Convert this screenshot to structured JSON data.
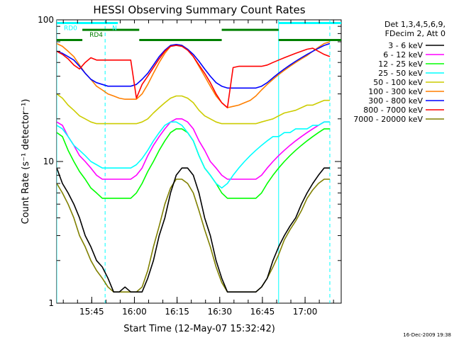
{
  "chart_data": {
    "type": "line",
    "title": "HESSI Observing Summary Count Rates",
    "xlabel": "Start Time (12-May-07 15:32:42)",
    "ylabel": "Count Rate (s⁻¹ detector⁻¹)",
    "yscale": "log",
    "ylim": [
      1,
      100
    ],
    "y_ticks": [
      {
        "value": 1,
        "label": "1"
      },
      {
        "value": 10,
        "label": "10"
      },
      {
        "value": 100,
        "label": "100"
      }
    ],
    "x_unit": "minutes since 15:32:42",
    "xlim": [
      0,
      100
    ],
    "x_ticks": [
      {
        "value": 12.3,
        "label": "15:45"
      },
      {
        "value": 27.3,
        "label": "16:00"
      },
      {
        "value": 42.3,
        "label": "16:15"
      },
      {
        "value": 57.3,
        "label": "16:30"
      },
      {
        "value": 72.3,
        "label": "16:45"
      },
      {
        "value": 87.3,
        "label": "17:00"
      }
    ],
    "legend_header": [
      "Det 1,3,4,5,6,9,",
      "FDecim 2, Att 0"
    ],
    "legend_position": "right",
    "series": [
      {
        "name": "3 - 6 keV",
        "color": "#000000",
        "x": [
          0,
          2,
          4,
          6,
          8,
          10,
          12,
          14,
          16,
          18,
          20,
          22,
          24,
          26,
          28,
          30,
          32,
          34,
          36,
          38,
          40,
          42,
          44,
          46,
          48,
          50,
          52,
          54,
          56,
          58,
          60,
          62,
          64,
          66,
          68,
          70,
          72,
          74,
          76,
          78,
          80,
          82,
          84,
          86,
          88,
          90,
          92,
          94,
          96
        ],
        "y": [
          9,
          7,
          6,
          5,
          4,
          3,
          2.5,
          2,
          1.8,
          1.5,
          1.2,
          1.2,
          1.3,
          1.2,
          1.2,
          1.2,
          1.5,
          2,
          3,
          4,
          6,
          8,
          9,
          9,
          8,
          6,
          4,
          3,
          2,
          1.5,
          1.2,
          1.2,
          1.2,
          1.2,
          1.2,
          1.2,
          1.3,
          1.5,
          2,
          2.5,
          3,
          3.5,
          4,
          5,
          6,
          7,
          8,
          9,
          9
        ]
      },
      {
        "name": "6 - 12 keV",
        "color": "#ff00ff",
        "x": [
          0,
          2,
          4,
          6,
          8,
          10,
          12,
          14,
          16,
          18,
          20,
          22,
          24,
          26,
          28,
          30,
          32,
          34,
          36,
          38,
          40,
          42,
          44,
          46,
          48,
          50,
          52,
          54,
          56,
          58,
          60,
          62,
          64,
          66,
          68,
          70,
          72,
          74,
          76,
          78,
          80,
          82,
          84,
          86,
          88,
          90,
          92,
          94,
          96
        ],
        "y": [
          19,
          18,
          15,
          13,
          11,
          10,
          9,
          8,
          7.5,
          7.5,
          7.5,
          7.5,
          7.5,
          7.5,
          8,
          9,
          11,
          13,
          15,
          17,
          19,
          20,
          20,
          19,
          17,
          14,
          12,
          10,
          9,
          8,
          7.5,
          7.5,
          7.5,
          7.5,
          7.5,
          7.5,
          8,
          9,
          10,
          11,
          12,
          13,
          14,
          15,
          16,
          17,
          18,
          19,
          19
        ]
      },
      {
        "name": "12 - 25 keV",
        "color": "#00ff00",
        "x": [
          0,
          2,
          4,
          6,
          8,
          10,
          12,
          14,
          16,
          18,
          20,
          22,
          24,
          26,
          28,
          30,
          32,
          34,
          36,
          38,
          40,
          42,
          44,
          46,
          48,
          50,
          52,
          54,
          56,
          58,
          60,
          62,
          64,
          66,
          68,
          70,
          72,
          74,
          76,
          78,
          80,
          82,
          84,
          86,
          88,
          90,
          92,
          94,
          96
        ],
        "y": [
          16,
          15,
          12,
          10,
          8.5,
          7.5,
          6.5,
          6,
          5.5,
          5.5,
          5.5,
          5.5,
          5.5,
          5.5,
          6,
          7,
          8.5,
          10,
          12,
          14,
          16,
          17,
          17,
          16,
          14,
          11,
          9,
          8,
          7,
          6,
          5.5,
          5.5,
          5.5,
          5.5,
          5.5,
          5.5,
          6,
          7,
          8,
          9,
          10,
          11,
          12,
          13,
          14,
          15,
          16,
          17,
          17
        ]
      },
      {
        "name": "25 - 50 keV",
        "color": "#00ffff",
        "x": [
          0,
          2,
          4,
          6,
          8,
          10,
          12,
          14,
          16,
          18,
          20,
          22,
          24,
          26,
          28,
          30,
          32,
          34,
          36,
          38,
          40,
          42,
          44,
          46,
          48,
          50,
          52,
          54,
          56,
          58,
          60,
          62,
          64,
          66,
          68,
          70,
          72,
          74,
          76,
          78,
          80,
          82,
          84,
          86,
          88,
          90,
          92,
          94,
          96
        ],
        "y": [
          18,
          17,
          15,
          13,
          12,
          11,
          10,
          9.5,
          9,
          9,
          9,
          9,
          9,
          9,
          9.5,
          10.5,
          12,
          14,
          16,
          18,
          19,
          19,
          18,
          16,
          14,
          11,
          9,
          8,
          7,
          6.5,
          7,
          8,
          9,
          10,
          11,
          12,
          13,
          14,
          15,
          15,
          16,
          16,
          17,
          17,
          17,
          18,
          18,
          19,
          19
        ]
      },
      {
        "name": "50 - 100 keV",
        "color": "#cccc00",
        "x": [
          0,
          2,
          4,
          6,
          8,
          10,
          12,
          14,
          16,
          18,
          20,
          22,
          24,
          26,
          28,
          30,
          32,
          34,
          36,
          38,
          40,
          42,
          44,
          46,
          48,
          50,
          52,
          54,
          56,
          58,
          60,
          62,
          64,
          66,
          68,
          70,
          72,
          74,
          76,
          78,
          80,
          82,
          84,
          86,
          88,
          90,
          92,
          94,
          96
        ],
        "y": [
          30,
          28,
          25,
          23,
          21,
          20,
          19,
          18.5,
          18.5,
          18.5,
          18.5,
          18.5,
          18.5,
          18.5,
          18.5,
          19,
          20,
          22,
          24,
          26,
          28,
          29,
          29,
          28,
          26,
          23,
          21,
          20,
          19,
          18.5,
          18.5,
          18.5,
          18.5,
          18.5,
          18.5,
          18.5,
          19,
          19.5,
          20,
          21,
          22,
          22.5,
          23,
          24,
          25,
          25,
          26,
          27,
          27
        ]
      },
      {
        "name": "100 - 300 keV",
        "color": "#ff7f00",
        "x": [
          0,
          2,
          4,
          6,
          8,
          10,
          12,
          14,
          16,
          18,
          20,
          22,
          24,
          26,
          28,
          30,
          32,
          34,
          36,
          38,
          40,
          42,
          44,
          46,
          48,
          50,
          52,
          54,
          56,
          58,
          60,
          62,
          64,
          66,
          68,
          70,
          72,
          74,
          76,
          78,
          80,
          82,
          84,
          86,
          88,
          90,
          92,
          94,
          96
        ],
        "y": [
          68,
          65,
          60,
          55,
          48,
          42,
          38,
          34,
          32,
          30,
          29,
          28,
          27.5,
          27.5,
          27.5,
          30,
          35,
          42,
          50,
          58,
          65,
          67,
          66,
          62,
          55,
          47,
          40,
          34,
          29,
          26,
          24,
          24.5,
          25,
          26,
          27,
          29,
          32,
          35,
          38,
          41,
          44,
          47,
          50,
          53,
          56,
          60,
          64,
          68,
          70
        ]
      },
      {
        "name": "300 - 800 keV",
        "color": "#0000ff",
        "x": [
          0,
          2,
          4,
          6,
          8,
          10,
          12,
          14,
          16,
          18,
          20,
          22,
          24,
          26,
          28,
          30,
          32,
          34,
          36,
          38,
          40,
          42,
          44,
          46,
          48,
          50,
          52,
          54,
          56,
          58,
          60,
          62,
          64,
          66,
          68,
          70,
          72,
          74,
          76,
          78,
          80,
          82,
          84,
          86,
          88,
          90,
          92,
          94,
          96
        ],
        "y": [
          60,
          58,
          55,
          52,
          47,
          42,
          38,
          36,
          35,
          34,
          34,
          34,
          34,
          34,
          35,
          38,
          42,
          48,
          55,
          61,
          66,
          67,
          66,
          62,
          57,
          51,
          45,
          40,
          36,
          34,
          33,
          33,
          33,
          33,
          33,
          33,
          34,
          36,
          39,
          42,
          45,
          48,
          51,
          54,
          57,
          60,
          63,
          66,
          68
        ]
      },
      {
        "name": "800 - 7000 keV",
        "color": "#ff0000",
        "x": [
          0,
          2,
          4,
          6,
          8,
          10,
          12,
          14,
          16,
          18,
          20,
          22,
          24,
          26,
          28,
          30,
          32,
          34,
          36,
          38,
          40,
          42,
          44,
          46,
          48,
          50,
          52,
          54,
          56,
          58,
          60,
          62,
          64,
          66,
          68,
          70,
          72,
          74,
          76,
          78,
          80,
          82,
          84,
          86,
          88,
          90,
          92,
          94,
          96
        ],
        "y": [
          60,
          57,
          53,
          48,
          45,
          50,
          54,
          52,
          52,
          52,
          52,
          52,
          52,
          52,
          28,
          35,
          40,
          46,
          53,
          60,
          65,
          66,
          65,
          61,
          55,
          48,
          42,
          36,
          30,
          26,
          24,
          46,
          47,
          47,
          47,
          47,
          47,
          48,
          50,
          52,
          54,
          56,
          58,
          60,
          62,
          63,
          60,
          57,
          55
        ]
      },
      {
        "name": "7000 - 20000 keV",
        "color": "#808000",
        "x": [
          0,
          2,
          4,
          6,
          8,
          10,
          12,
          14,
          16,
          18,
          20,
          22,
          24,
          26,
          28,
          30,
          32,
          34,
          36,
          38,
          40,
          42,
          44,
          46,
          48,
          50,
          52,
          54,
          56,
          58,
          60,
          62,
          64,
          66,
          68,
          70,
          72,
          74,
          76,
          78,
          80,
          82,
          84,
          86,
          88,
          90,
          92,
          94,
          96
        ],
        "y": [
          7,
          6,
          5,
          4,
          3,
          2.5,
          2,
          1.7,
          1.5,
          1.3,
          1.2,
          1.2,
          1.2,
          1.2,
          1.2,
          1.3,
          1.7,
          2.5,
          3.5,
          5,
          6.5,
          7.5,
          7.5,
          7,
          6,
          4.5,
          3.3,
          2.5,
          1.8,
          1.4,
          1.2,
          1.2,
          1.2,
          1.2,
          1.2,
          1.2,
          1.3,
          1.5,
          1.8,
          2.2,
          2.8,
          3.3,
          3.8,
          4.5,
          5.5,
          6.3,
          7,
          7.5,
          7.5
        ]
      }
    ],
    "annotations": {
      "top_bars": [
        {
          "label": "RD0",
          "color": "#00ffff",
          "x_start": 0,
          "x_end": 17,
          "y": 95
        },
        {
          "label": "N",
          "color": "#00ffff",
          "x_start": 17,
          "x_end": 21.5,
          "y": 95
        },
        {
          "label": "RD4",
          "color": "#007f00",
          "x_start": 9,
          "x_end": 29,
          "y": 85
        },
        {
          "label": "",
          "color": "#007f00",
          "x_start": 0,
          "x_end": 9,
          "y": 72
        },
        {
          "label": "",
          "color": "#007f00",
          "x_start": 29,
          "x_end": 58,
          "y": 72
        },
        {
          "label": "",
          "color": "#007f00",
          "x_start": 58,
          "x_end": 78,
          "y": 85
        },
        {
          "label": "",
          "color": "#007f00",
          "x_start": 78,
          "x_end": 100,
          "y": 72
        },
        {
          "label": "",
          "color": "#00ffff",
          "x_start": 78,
          "x_end": 100,
          "y": 95
        }
      ],
      "vertical_lines": [
        {
          "x": 0,
          "color": "#00ffff",
          "style": "solid"
        },
        {
          "x": 17,
          "color": "#00ffff",
          "style": "dashed"
        },
        {
          "x": 78,
          "color": "#00ffff",
          "style": "solid"
        },
        {
          "x": 96,
          "color": "#00ffff",
          "style": "dashed"
        }
      ]
    },
    "footer_timestamp": "16-Dec-2009 19:38",
    "grid": false
  }
}
